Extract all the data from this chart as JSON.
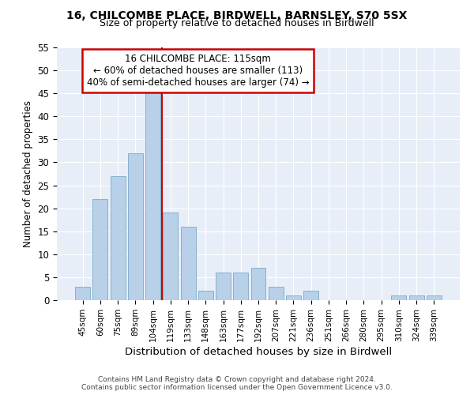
{
  "title_line1": "16, CHILCOMBE PLACE, BIRDWELL, BARNSLEY, S70 5SX",
  "title_line2": "Size of property relative to detached houses in Birdwell",
  "xlabel": "Distribution of detached houses by size in Birdwell",
  "ylabel": "Number of detached properties",
  "categories": [
    "45sqm",
    "60sqm",
    "75sqm",
    "89sqm",
    "104sqm",
    "119sqm",
    "133sqm",
    "148sqm",
    "163sqm",
    "177sqm",
    "192sqm",
    "207sqm",
    "221sqm",
    "236sqm",
    "251sqm",
    "266sqm",
    "280sqm",
    "295sqm",
    "310sqm",
    "324sqm",
    "339sqm"
  ],
  "values": [
    3,
    22,
    27,
    32,
    46,
    19,
    16,
    2,
    6,
    6,
    7,
    3,
    1,
    2,
    0,
    0,
    0,
    0,
    1,
    1,
    1
  ],
  "bar_color": "#b8d0e8",
  "bar_edge_color": "#7aaac8",
  "vline_color": "#cc0000",
  "vline_x": 4.5,
  "annotation_line1": "16 CHILCOMBE PLACE: 115sqm",
  "annotation_line2": "← 60% of detached houses are smaller (113)",
  "annotation_line3": "40% of semi-detached houses are larger (74) →",
  "annotation_box_edge_color": "#cc0000",
  "ylim": [
    0,
    55
  ],
  "yticks": [
    0,
    5,
    10,
    15,
    20,
    25,
    30,
    35,
    40,
    45,
    50,
    55
  ],
  "footer_line1": "Contains HM Land Registry data © Crown copyright and database right 2024.",
  "footer_line2": "Contains public sector information licensed under the Open Government Licence v3.0.",
  "fig_bg_color": "#ffffff",
  "plot_bg_color": "#e8eef8"
}
